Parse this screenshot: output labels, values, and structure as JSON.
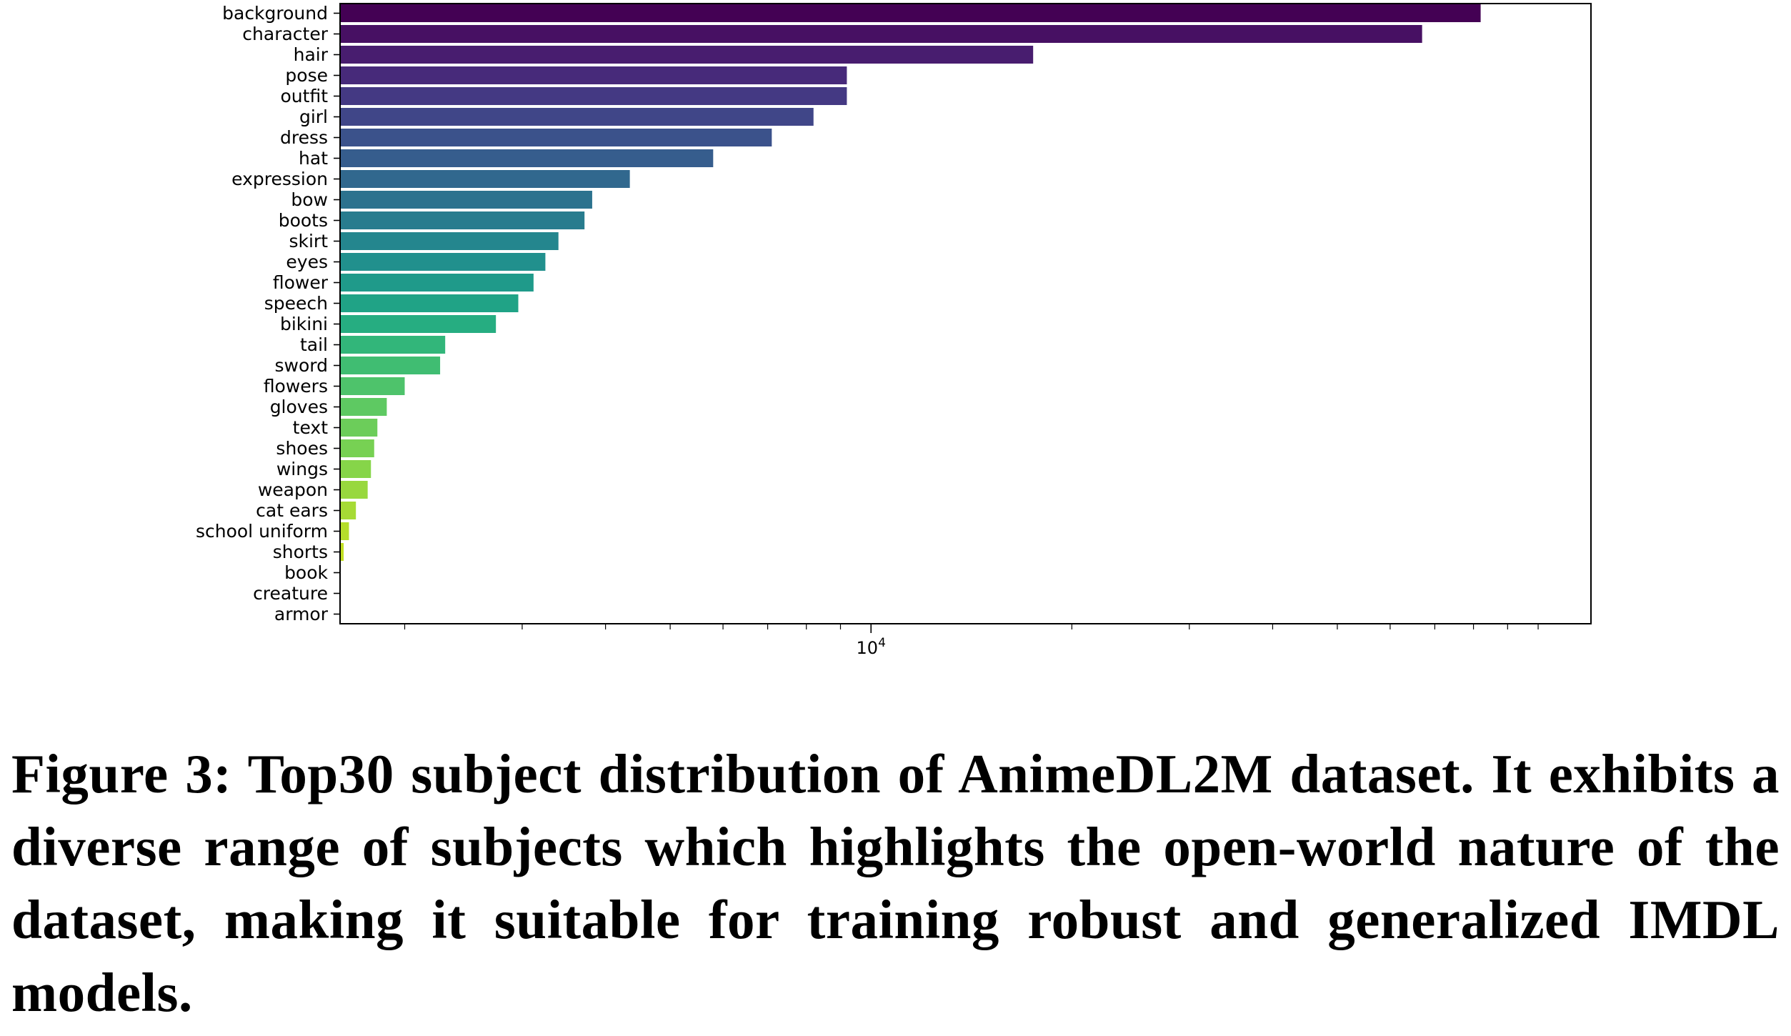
{
  "chart_data": {
    "type": "bar",
    "orientation": "horizontal",
    "x_scale": "log",
    "xlim": [
      1600,
      120000
    ],
    "grid": false,
    "legend": "none",
    "xlabel": "",
    "ylabel": "",
    "x_tick_labels": [
      {
        "value": 10000,
        "base": "10",
        "exponent": "4"
      }
    ],
    "categories": [
      "background",
      "character",
      "hair",
      "pose",
      "outfit",
      "girl",
      "dress",
      "hat",
      "expression",
      "bow",
      "boots",
      "skirt",
      "eyes",
      "flower",
      "speech",
      "bikini",
      "tail",
      "sword",
      "flowers",
      "gloves",
      "text",
      "shoes",
      "wings",
      "weapon",
      "cat ears",
      "school uniform",
      "shorts",
      "book",
      "creature",
      "armor"
    ],
    "values": [
      82000,
      67000,
      17500,
      9200,
      9200,
      8200,
      7100,
      5800,
      4350,
      3820,
      3720,
      3400,
      3250,
      3120,
      2960,
      2740,
      2300,
      2260,
      2000,
      1880,
      1820,
      1800,
      1780,
      1760,
      1690,
      1650,
      1620,
      1590,
      1580,
      1570
    ],
    "colors": [
      "#440154",
      "#471063",
      "#481d6f",
      "#472a7a",
      "#443983",
      "#404688",
      "#3b528b",
      "#365d8d",
      "#31688e",
      "#2c728e",
      "#287c8e",
      "#24868e",
      "#21908d",
      "#1f9a8a",
      "#20a386",
      "#26ad81",
      "#32b67a",
      "#40bd72",
      "#4ec36b",
      "#5ec962",
      "#6ccd5a",
      "#77d153",
      "#86d549",
      "#98d83e",
      "#a6db35",
      "#b5de2b",
      "#c2df23",
      "#cde11d",
      "#d5e21a",
      "#dde318"
    ]
  },
  "caption": {
    "text": "Figure 3: Top30 subject distribution of AnimeDL2M dataset. It exhibits a diverse range of subjects which highlights the open-world nature of the dataset, making it suitable for training robust and generalized IMDL models."
  }
}
